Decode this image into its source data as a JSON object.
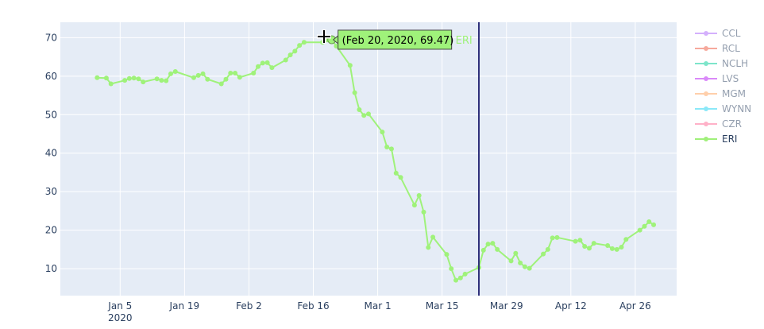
{
  "chart_data": {
    "type": "line",
    "title": "",
    "xlabel": "",
    "ylabel": "",
    "ylim": [
      3,
      74
    ],
    "grid": true,
    "x_ticks": [
      "Jan 5",
      "Jan 19",
      "Feb 2",
      "Feb 16",
      "Mar 1",
      "Mar 15",
      "Mar 29",
      "Apr 12",
      "Apr 26"
    ],
    "x_tick_year": "2020",
    "y_ticks": [
      10,
      20,
      30,
      40,
      50,
      60,
      70
    ],
    "legend": [
      {
        "name": "CCL",
        "color": "#ab63fa",
        "active": false
      },
      {
        "name": "RCL",
        "color": "#ef553b",
        "active": false
      },
      {
        "name": "NCLH",
        "color": "#00cc96",
        "active": false
      },
      {
        "name": "LVS",
        "color": "#b616f5",
        "active": false
      },
      {
        "name": "MGM",
        "color": "#ffa15a",
        "active": false
      },
      {
        "name": "WYNN",
        "color": "#19d3f3",
        "active": false
      },
      {
        "name": "CZR",
        "color": "#ff6692",
        "active": false
      },
      {
        "name": "ERI",
        "color": "#a0f07a",
        "active": true
      }
    ],
    "series": [
      {
        "name": "ERI",
        "color": "#9ff27a",
        "points": [
          [
            "2019-12-31",
            59.6
          ],
          [
            "2020-01-02",
            59.5
          ],
          [
            "2020-01-03",
            58.0
          ],
          [
            "2020-01-06",
            58.9
          ],
          [
            "2020-01-07",
            59.4
          ],
          [
            "2020-01-08",
            59.5
          ],
          [
            "2020-01-09",
            59.3
          ],
          [
            "2020-01-10",
            58.5
          ],
          [
            "2020-01-13",
            59.3
          ],
          [
            "2020-01-14",
            58.9
          ],
          [
            "2020-01-15",
            58.8
          ],
          [
            "2020-01-16",
            60.6
          ],
          [
            "2020-01-17",
            61.2
          ],
          [
            "2020-01-21",
            59.6
          ],
          [
            "2020-01-22",
            60.2
          ],
          [
            "2020-01-23",
            60.6
          ],
          [
            "2020-01-24",
            59.2
          ],
          [
            "2020-01-27",
            58.0
          ],
          [
            "2020-01-28",
            59.2
          ],
          [
            "2020-01-29",
            60.8
          ],
          [
            "2020-01-30",
            60.8
          ],
          [
            "2020-01-31",
            59.7
          ],
          [
            "2020-02-03",
            60.8
          ],
          [
            "2020-02-04",
            62.5
          ],
          [
            "2020-02-05",
            63.4
          ],
          [
            "2020-02-06",
            63.5
          ],
          [
            "2020-02-07",
            62.2
          ],
          [
            "2020-02-10",
            64.2
          ],
          [
            "2020-02-11",
            65.5
          ],
          [
            "2020-02-12",
            66.5
          ],
          [
            "2020-02-13",
            68.0
          ],
          [
            "2020-02-14",
            68.8
          ],
          [
            "2020-02-18",
            68.8
          ],
          [
            "2020-02-19",
            69.4
          ],
          [
            "2020-02-20",
            69.47
          ],
          [
            "2020-02-21",
            67.8
          ],
          [
            "2020-02-24",
            62.8
          ],
          [
            "2020-02-25",
            55.7
          ],
          [
            "2020-02-26",
            51.3
          ],
          [
            "2020-02-27",
            49.8
          ],
          [
            "2020-02-28",
            50.2
          ],
          [
            "2020-03-02",
            45.5
          ],
          [
            "2020-03-03",
            41.6
          ],
          [
            "2020-03-04",
            41.1
          ],
          [
            "2020-03-05",
            34.8
          ],
          [
            "2020-03-06",
            33.7
          ],
          [
            "2020-03-09",
            26.5
          ],
          [
            "2020-03-10",
            29.0
          ],
          [
            "2020-03-11",
            24.7
          ],
          [
            "2020-03-12",
            15.5
          ],
          [
            "2020-03-13",
            18.2
          ],
          [
            "2020-03-16",
            13.7
          ],
          [
            "2020-03-17",
            10.0
          ],
          [
            "2020-03-18",
            7.0
          ],
          [
            "2020-03-19",
            7.6
          ],
          [
            "2020-03-20",
            8.6
          ],
          [
            "2020-03-23",
            10.3
          ],
          [
            "2020-03-24",
            14.8
          ],
          [
            "2020-03-25",
            16.4
          ],
          [
            "2020-03-26",
            16.6
          ],
          [
            "2020-03-27",
            15.0
          ],
          [
            "2020-03-30",
            12.0
          ],
          [
            "2020-03-31",
            14.0
          ],
          [
            "2020-04-01",
            11.5
          ],
          [
            "2020-04-02",
            10.5
          ],
          [
            "2020-04-03",
            10.1
          ],
          [
            "2020-04-06",
            13.8
          ],
          [
            "2020-04-07",
            15.0
          ],
          [
            "2020-04-08",
            18.0
          ],
          [
            "2020-04-09",
            18.1
          ],
          [
            "2020-04-13",
            17.1
          ],
          [
            "2020-04-14",
            17.4
          ],
          [
            "2020-04-15",
            15.8
          ],
          [
            "2020-04-16",
            15.3
          ],
          [
            "2020-04-17",
            16.6
          ],
          [
            "2020-04-20",
            16.0
          ],
          [
            "2020-04-21",
            15.2
          ],
          [
            "2020-04-22",
            15.0
          ],
          [
            "2020-04-23",
            15.6
          ],
          [
            "2020-04-24",
            17.6
          ],
          [
            "2020-04-27",
            20.0
          ],
          [
            "2020-04-28",
            21.0
          ],
          [
            "2020-04-29",
            22.2
          ],
          [
            "2020-04-30",
            21.4
          ]
        ]
      }
    ],
    "vertical_line": {
      "x": "2020-03-23",
      "color": "#2e2f7a"
    },
    "hover": {
      "text": "(Feb 20, 2020, 69.47)",
      "series_label": "ERI",
      "x": "2020-02-20",
      "y": 69.47,
      "bg": "#9ff27a"
    }
  }
}
